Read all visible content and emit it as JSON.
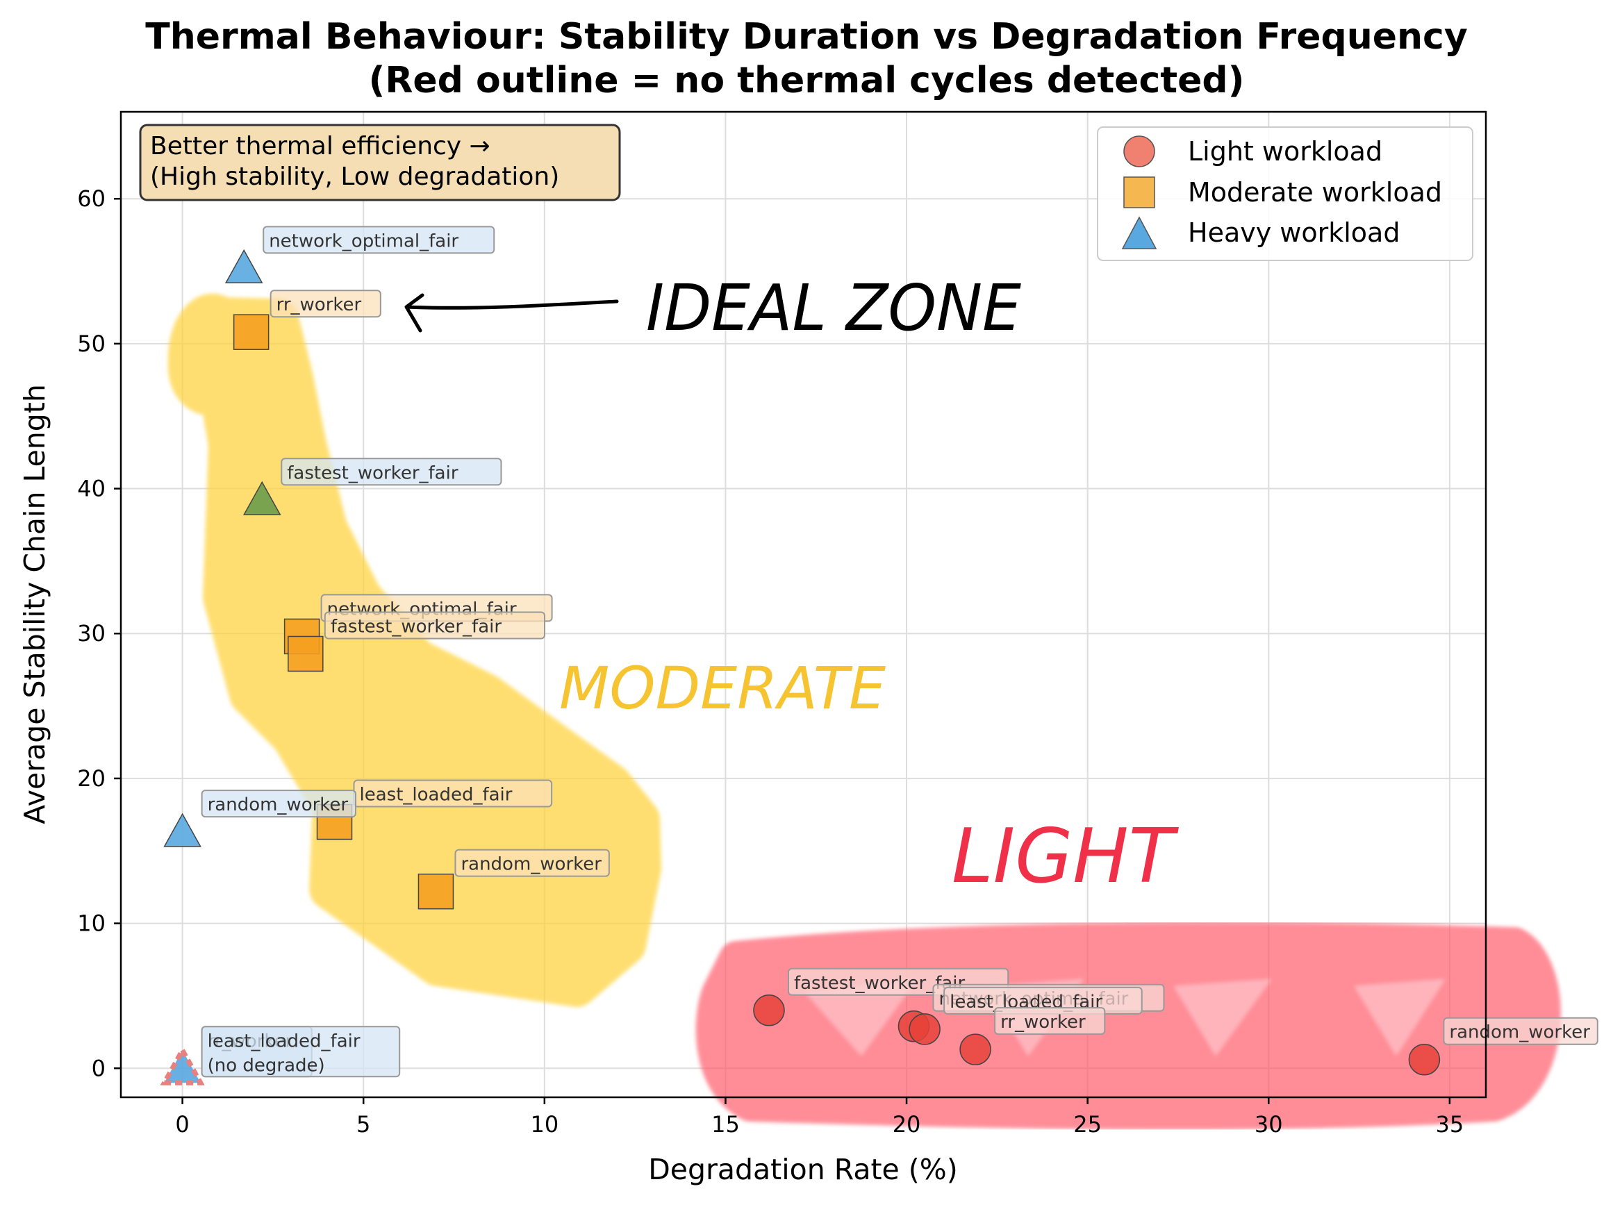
{
  "chart_data": {
    "type": "scatter",
    "title_line1": "Thermal Behaviour: Stability Duration vs Degradation Frequency",
    "title_line2": "(Red outline = no thermal cycles detected)",
    "xlabel": "Degradation Rate (%)",
    "ylabel": "Average Stability Chain Length",
    "xlim": [
      -1.7,
      36
    ],
    "ylim": [
      -2,
      66
    ],
    "x_ticks": [
      0,
      5,
      10,
      15,
      20,
      25,
      30,
      35
    ],
    "y_ticks": [
      0,
      10,
      20,
      30,
      40,
      50,
      60
    ],
    "grid": true,
    "legend_placement": "top-right",
    "series": [
      {
        "name": "Light workload",
        "marker": "circle",
        "color": "#e8423a",
        "legend_color": "#f08070",
        "label_bg": "#f8d8d4",
        "points": [
          {
            "x": 16.2,
            "y": 4.0,
            "label": "fastest_worker_fair"
          },
          {
            "x": 20.2,
            "y": 2.9,
            "label": "network_optimal_fair"
          },
          {
            "x": 20.5,
            "y": 2.7,
            "label": "least_loaded_fair"
          },
          {
            "x": 21.9,
            "y": 1.3,
            "label": "rr_worker"
          },
          {
            "x": 34.3,
            "y": 0.6,
            "label": "random_worker"
          }
        ]
      },
      {
        "name": "Moderate workload",
        "marker": "square",
        "color": "#f5a020",
        "legend_color": "#f5b850",
        "label_bg": "#fbe0b8",
        "points": [
          {
            "x": 1.9,
            "y": 50.8,
            "label": "rr_worker"
          },
          {
            "x": 3.3,
            "y": 29.8,
            "label": "network_optimal_fair"
          },
          {
            "x": 3.4,
            "y": 28.6,
            "label": "fastest_worker_fair"
          },
          {
            "x": 4.2,
            "y": 17.0,
            "label": "least_loaded_fair"
          },
          {
            "x": 7.0,
            "y": 12.2,
            "label": "random_worker"
          }
        ]
      },
      {
        "name": "Heavy workload",
        "marker": "triangle",
        "color": "#5aa8e0",
        "legend_color": "#5aa8e0",
        "label_bg": "#d4e6f4",
        "points": [
          {
            "x": 1.7,
            "y": 55.2,
            "label": "network_optimal_fair"
          },
          {
            "x": 2.2,
            "y": 39.2,
            "label": "fastest_worker_fair",
            "color": "#6b9c4c"
          },
          {
            "x": 0.0,
            "y": 16.3,
            "label": "random_worker"
          },
          {
            "x": 0.0,
            "y": 0.0,
            "label": "rr_worker",
            "no_cycles": true
          },
          {
            "x": 0.0,
            "y": 0.0,
            "label": "least_loaded_fair",
            "no_cycles": true
          }
        ]
      }
    ],
    "no_cycles_note": "(no degrade)",
    "no_cycles_outline_color": "#e88080",
    "info_box": {
      "line1": "Better thermal efficiency →",
      "line2": "(High stability, Low degradation)",
      "bg": "#f5deb3"
    },
    "annotations": [
      {
        "text": "IDEAL ZONE",
        "color": "#000000"
      },
      {
        "text": "MODERATE",
        "color": "#f5c430"
      },
      {
        "text": "LIGHT",
        "color": "#f03048"
      }
    ]
  }
}
